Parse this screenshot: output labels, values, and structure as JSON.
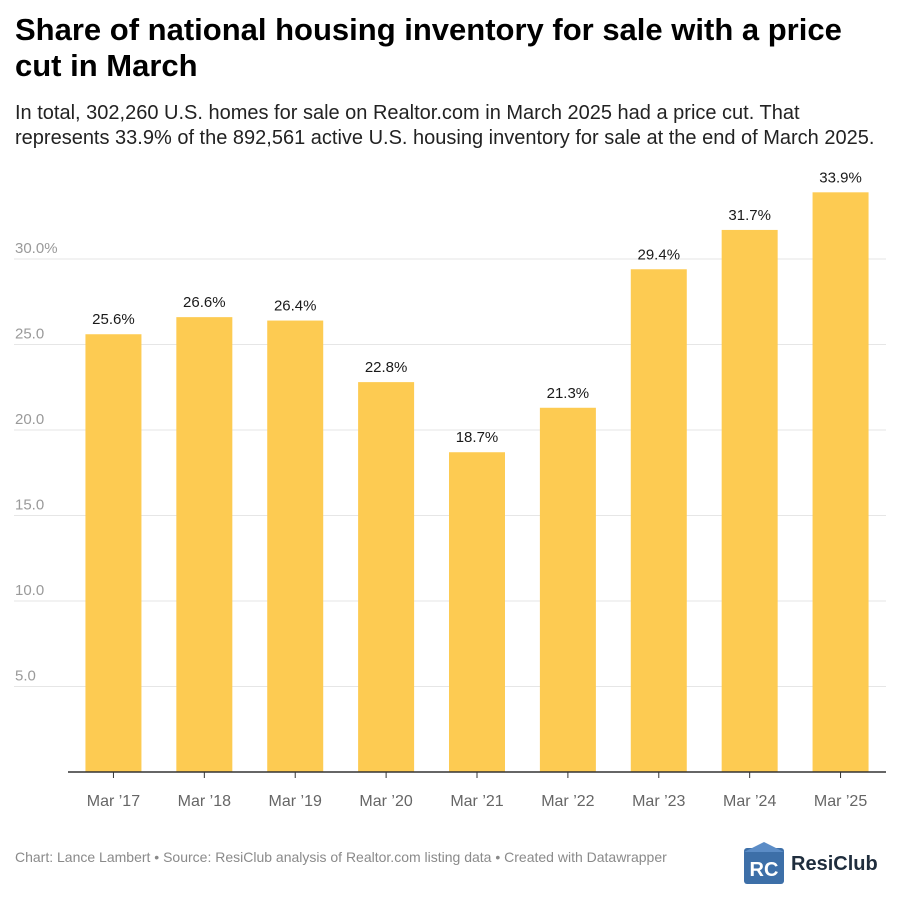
{
  "header": {
    "title": "Share of national housing inventory for sale with a price cut in March",
    "subtitle": "In total, 302,260 U.S. homes for sale on Realtor.com in March 2025 had a price cut. That represents 33.9% of the 892,561 active U.S. housing inventory for sale at the end of March 2025."
  },
  "footer": {
    "credits": "Chart: Lance Lambert • Source: ResiClub analysis of Realtor.com listing data • Created with Datawrapper",
    "brand": "ResiClub",
    "brand_mark": "RC"
  },
  "colors": {
    "bar": "#FDCB52",
    "grid": "#e6e6e6",
    "axis": "#333333",
    "tick_text": "#9a9a9a",
    "label_text": "#1a1a1a",
    "logo_mark": "#3d6fa8"
  },
  "chart_data": {
    "type": "bar",
    "title": "Share of national housing inventory for sale with a price cut in March",
    "categories": [
      "Mar ’17",
      "Mar ’18",
      "Mar ’19",
      "Mar ’20",
      "Mar ’21",
      "Mar ’22",
      "Mar ’23",
      "Mar ’24",
      "Mar ’25"
    ],
    "values": [
      25.6,
      26.6,
      26.4,
      22.8,
      18.7,
      21.3,
      29.4,
      31.7,
      33.9
    ],
    "value_labels": [
      "25.6%",
      "26.6%",
      "26.4%",
      "22.8%",
      "18.7%",
      "21.3%",
      "29.4%",
      "31.7%",
      "33.9%"
    ],
    "y_ticks": [
      5,
      10,
      15,
      20,
      25,
      30
    ],
    "y_tick_labels": [
      "5.0",
      "10.0",
      "15.0",
      "20.0",
      "25.0",
      "30.0%"
    ],
    "ylim": [
      0,
      34
    ],
    "grid": true,
    "legend": "none",
    "xlabel": "",
    "ylabel": ""
  }
}
